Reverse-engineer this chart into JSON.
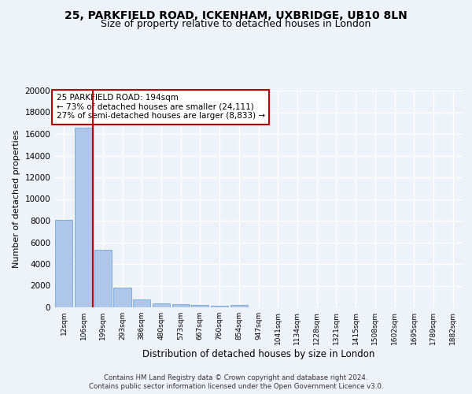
{
  "title_line1": "25, PARKFIELD ROAD, ICKENHAM, UXBRIDGE, UB10 8LN",
  "title_line2": "Size of property relative to detached houses in London",
  "xlabel": "Distribution of detached houses by size in London",
  "ylabel": "Number of detached properties",
  "categories": [
    "12sqm",
    "106sqm",
    "199sqm",
    "293sqm",
    "386sqm",
    "480sqm",
    "573sqm",
    "667sqm",
    "760sqm",
    "854sqm",
    "947sqm",
    "1041sqm",
    "1134sqm",
    "1228sqm",
    "1321sqm",
    "1415sqm",
    "1508sqm",
    "1602sqm",
    "1695sqm",
    "1789sqm",
    "1882sqm"
  ],
  "values": [
    8100,
    16600,
    5300,
    1850,
    700,
    350,
    270,
    210,
    160,
    220,
    0,
    0,
    0,
    0,
    0,
    0,
    0,
    0,
    0,
    0,
    0
  ],
  "bar_color": "#aec6e8",
  "bar_edge_color": "#5b9bd5",
  "vline_color": "#c00000",
  "annotation_text": "25 PARKFIELD ROAD: 194sqm\n← 73% of detached houses are smaller (24,111)\n27% of semi-detached houses are larger (8,833) →",
  "annotation_box_color": "#ffffff",
  "annotation_box_edge_color": "#c00000",
  "ylim": [
    0,
    20000
  ],
  "yticks": [
    0,
    2000,
    4000,
    6000,
    8000,
    10000,
    12000,
    14000,
    16000,
    18000,
    20000
  ],
  "footer_line1": "Contains HM Land Registry data © Crown copyright and database right 2024.",
  "footer_line2": "Contains public sector information licensed under the Open Government Licence v3.0.",
  "bg_color": "#eef2f9",
  "plot_bg_color": "#eef2f9",
  "grid_color": "#ffffff",
  "title1_fontsize": 10,
  "title2_fontsize": 9,
  "xlabel_fontsize": 8.5,
  "ylabel_fontsize": 8
}
